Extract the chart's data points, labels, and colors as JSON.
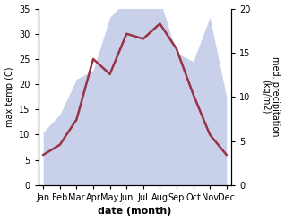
{
  "months": [
    "Jan",
    "Feb",
    "Mar",
    "Apr",
    "May",
    "Jun",
    "Jul",
    "Aug",
    "Sep",
    "Oct",
    "Nov",
    "Dec"
  ],
  "month_positions": [
    0,
    1,
    2,
    3,
    4,
    5,
    6,
    7,
    8,
    9,
    10,
    11
  ],
  "temperature": [
    6,
    8,
    13,
    25,
    22,
    30,
    29,
    32,
    27,
    18,
    10,
    6
  ],
  "precipitation": [
    6,
    8,
    12,
    13,
    19,
    21,
    20,
    21,
    15,
    14,
    19,
    10
  ],
  "temp_color": "#993344",
  "precip_fill_color": "#c8d0ea",
  "temp_ylim": [
    0,
    35
  ],
  "precip_ylim": [
    0,
    20
  ],
  "temp_yticks": [
    0,
    5,
    10,
    15,
    20,
    25,
    30,
    35
  ],
  "precip_yticks": [
    0,
    5,
    10,
    15,
    20
  ],
  "ylabel_left": "max temp (C)",
  "ylabel_right": "med. precipitation\n(kg/m2)",
  "xlabel": "date (month)",
  "background_color": "#ffffff",
  "line_width": 1.8,
  "tick_fontsize": 7,
  "label_fontsize": 7,
  "xlabel_fontsize": 8
}
